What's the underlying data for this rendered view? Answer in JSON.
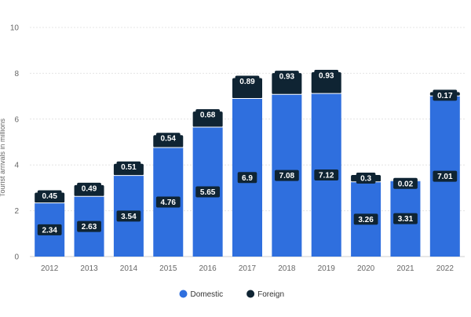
{
  "chart_data": {
    "type": "bar",
    "stacked": true,
    "categories": [
      "2012",
      "2013",
      "2014",
      "2015",
      "2016",
      "2017",
      "2018",
      "2019",
      "2020",
      "2021",
      "2022"
    ],
    "series": [
      {
        "name": "Domestic",
        "color": "#2f6fde",
        "values": [
          2.34,
          2.63,
          3.54,
          4.76,
          5.65,
          6.9,
          7.08,
          7.12,
          3.26,
          3.31,
          7.01
        ]
      },
      {
        "name": "Foreign",
        "color": "#0f2433",
        "values": [
          0.45,
          0.49,
          0.51,
          0.54,
          0.68,
          0.89,
          0.93,
          0.93,
          0.3,
          0.02,
          0.17
        ]
      }
    ],
    "value_labels": {
      "Domestic": [
        "2.34",
        "2.63",
        "3.54",
        "4.76",
        "5.65",
        "6.9",
        "7.08",
        "7.12",
        "3.26",
        "3.31",
        "7.01"
      ],
      "Foreign": [
        "0.45",
        "0.49",
        "0.51",
        "0.54",
        "0.68",
        "0.89",
        "0.93",
        "0.93",
        "0.3",
        "0.02",
        "0.17"
      ]
    },
    "yticks": [
      "0",
      "2",
      "4",
      "6",
      "8",
      "10"
    ],
    "ylim": [
      0,
      10
    ],
    "ylabel": "Tourist arrivals in millions",
    "xlabel": "",
    "grid": true,
    "legend_position": "bottom-center"
  }
}
